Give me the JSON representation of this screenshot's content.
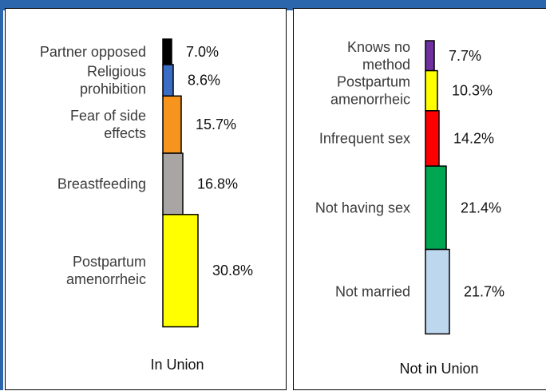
{
  "colors": {
    "header_bar": "#2b66ad",
    "panel_border": "#000000"
  },
  "chart_data": [
    {
      "type": "bar",
      "orientation": "stacked-column",
      "xlabel": "In Union",
      "categories": [
        "Partner opposed",
        "Religious prohibition",
        "Fear of side effects",
        "Breastfeeding",
        "Postpartum amenorrheic"
      ],
      "label_lines": [
        [
          "Partner opposed"
        ],
        [
          "Religious",
          "prohibition"
        ],
        [
          "Fear of side",
          "effects"
        ],
        [
          "Breastfeeding"
        ],
        [
          "Postpartum",
          "amenorrheic"
        ]
      ],
      "values": [
        7.0,
        8.6,
        15.7,
        16.8,
        30.8
      ],
      "value_labels": [
        "7.0%",
        "8.6%",
        "15.7%",
        "16.8%",
        "30.8%"
      ],
      "colors": [
        "#000000",
        "#3a6ec4",
        "#f7941d",
        "#aaa5a5",
        "#ffff00"
      ]
    },
    {
      "type": "bar",
      "orientation": "stacked-column",
      "xlabel": "Not in Union",
      "categories": [
        "Knows no method",
        "Postpartum amenorrheic",
        "Infrequent sex",
        "Not having sex",
        "Not married"
      ],
      "label_lines": [
        [
          "Knows no",
          "method"
        ],
        [
          "Postpartum",
          "amenorrheic"
        ],
        [
          "Infrequent sex"
        ],
        [
          "Not having sex"
        ],
        [
          "Not married"
        ]
      ],
      "values": [
        7.7,
        10.3,
        14.2,
        21.4,
        21.7
      ],
      "value_labels": [
        "7.7%",
        "10.3%",
        "14.2%",
        "21.4%",
        "21.7%"
      ],
      "colors": [
        "#7030a0",
        "#ffff00",
        "#ff0000",
        "#00a651",
        "#bdd7ee"
      ]
    }
  ]
}
